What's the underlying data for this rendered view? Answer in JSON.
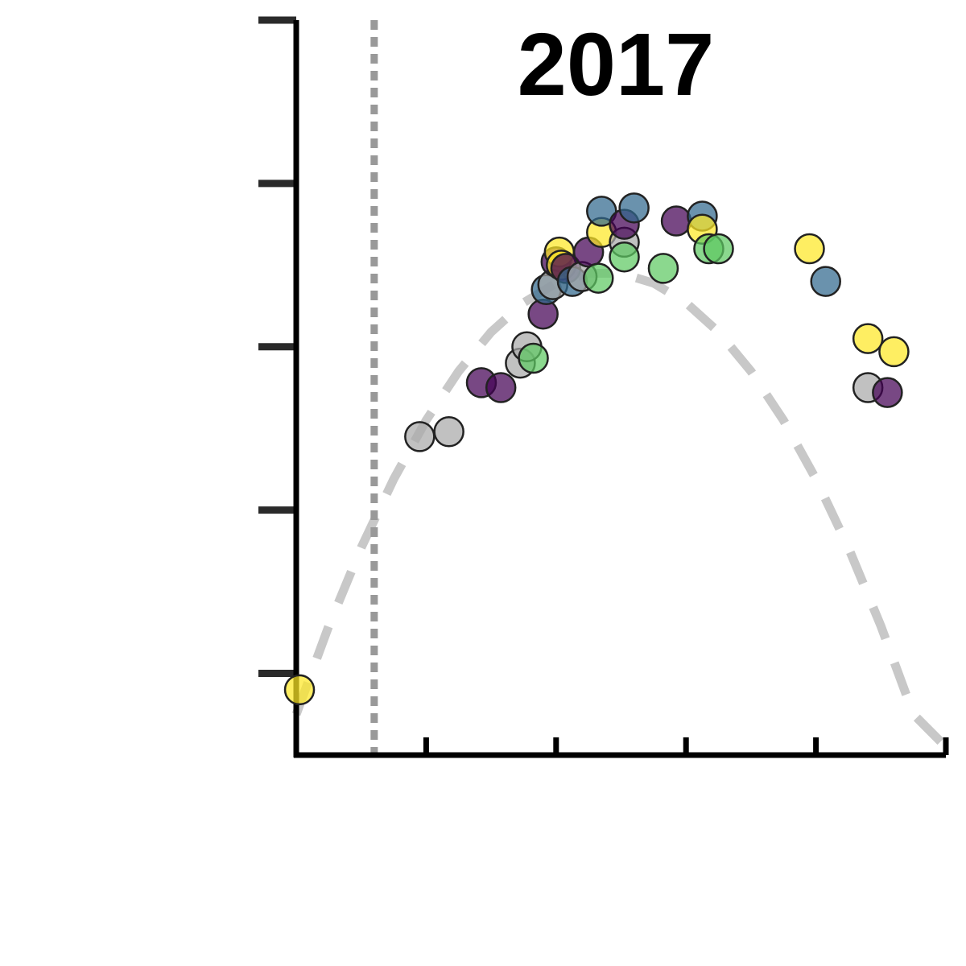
{
  "chart_data": {
    "type": "scatter",
    "title": "2017",
    "xlabel": "",
    "ylabel": "",
    "xlim": [
      0,
      10
    ],
    "ylim": [
      0,
      4.5
    ],
    "yticks": [
      0.5,
      1.5,
      2.5,
      3.5,
      4.5
    ],
    "xticks": [
      2,
      4,
      6,
      8,
      10
    ],
    "reference_line_x": 1.2,
    "grid": false,
    "legend": "none",
    "colors": [
      "#440154",
      "#31688e",
      "#5ec962",
      "#fde725",
      "#a9a9a9"
    ],
    "fit_curve": [
      {
        "x": 0.0,
        "y": 0.25
      },
      {
        "x": 0.5,
        "y": 0.79
      },
      {
        "x": 1.0,
        "y": 1.27
      },
      {
        "x": 1.5,
        "y": 1.69
      },
      {
        "x": 2.0,
        "y": 2.05
      },
      {
        "x": 2.5,
        "y": 2.35
      },
      {
        "x": 3.0,
        "y": 2.59
      },
      {
        "x": 3.5,
        "y": 2.77
      },
      {
        "x": 4.0,
        "y": 2.89
      },
      {
        "x": 4.5,
        "y": 2.95
      },
      {
        "x": 5.0,
        "y": 2.95
      },
      {
        "x": 5.5,
        "y": 2.89
      },
      {
        "x": 6.0,
        "y": 2.77
      },
      {
        "x": 6.5,
        "y": 2.59
      },
      {
        "x": 7.0,
        "y": 2.35
      },
      {
        "x": 7.5,
        "y": 2.05
      },
      {
        "x": 8.0,
        "y": 1.69
      },
      {
        "x": 8.5,
        "y": 1.27
      },
      {
        "x": 9.0,
        "y": 0.79
      },
      {
        "x": 9.5,
        "y": 0.25
      },
      {
        "x": 10.0,
        "y": 0.05
      }
    ],
    "points": [
      {
        "x": 0.05,
        "y": 0.4,
        "c": 3
      },
      {
        "x": 1.9,
        "y": 1.95,
        "c": 4
      },
      {
        "x": 2.35,
        "y": 1.98,
        "c": 4
      },
      {
        "x": 2.85,
        "y": 2.28,
        "c": 0
      },
      {
        "x": 3.15,
        "y": 2.25,
        "c": 0
      },
      {
        "x": 3.45,
        "y": 2.4,
        "c": 4
      },
      {
        "x": 3.55,
        "y": 2.5,
        "c": 4
      },
      {
        "x": 3.65,
        "y": 2.43,
        "c": 2
      },
      {
        "x": 3.8,
        "y": 2.7,
        "c": 0
      },
      {
        "x": 3.85,
        "y": 2.85,
        "c": 1
      },
      {
        "x": 3.95,
        "y": 2.88,
        "c": 4
      },
      {
        "x": 4.0,
        "y": 3.02,
        "c": 0
      },
      {
        "x": 4.05,
        "y": 3.08,
        "c": 3
      },
      {
        "x": 4.08,
        "y": 3.0,
        "c": 3
      },
      {
        "x": 4.15,
        "y": 2.98,
        "c": 0
      },
      {
        "x": 4.25,
        "y": 2.9,
        "c": 1
      },
      {
        "x": 4.4,
        "y": 2.93,
        "c": 4
      },
      {
        "x": 4.5,
        "y": 3.08,
        "c": 0
      },
      {
        "x": 4.65,
        "y": 2.92,
        "c": 2
      },
      {
        "x": 4.7,
        "y": 3.2,
        "c": 3
      },
      {
        "x": 4.7,
        "y": 3.33,
        "c": 1
      },
      {
        "x": 5.05,
        "y": 3.14,
        "c": 4
      },
      {
        "x": 5.05,
        "y": 3.25,
        "c": 0
      },
      {
        "x": 5.05,
        "y": 3.05,
        "c": 2
      },
      {
        "x": 5.2,
        "y": 3.35,
        "c": 1
      },
      {
        "x": 5.65,
        "y": 2.98,
        "c": 2
      },
      {
        "x": 5.85,
        "y": 3.27,
        "c": 0
      },
      {
        "x": 6.25,
        "y": 3.3,
        "c": 1
      },
      {
        "x": 6.25,
        "y": 3.22,
        "c": 3
      },
      {
        "x": 6.35,
        "y": 3.1,
        "c": 2
      },
      {
        "x": 6.5,
        "y": 3.1,
        "c": 2
      },
      {
        "x": 7.9,
        "y": 3.1,
        "c": 3
      },
      {
        "x": 8.15,
        "y": 2.9,
        "c": 1
      },
      {
        "x": 8.8,
        "y": 2.55,
        "c": 3
      },
      {
        "x": 8.8,
        "y": 2.25,
        "c": 4
      },
      {
        "x": 9.1,
        "y": 2.22,
        "c": 0
      },
      {
        "x": 9.2,
        "y": 2.47,
        "c": 3
      }
    ]
  }
}
